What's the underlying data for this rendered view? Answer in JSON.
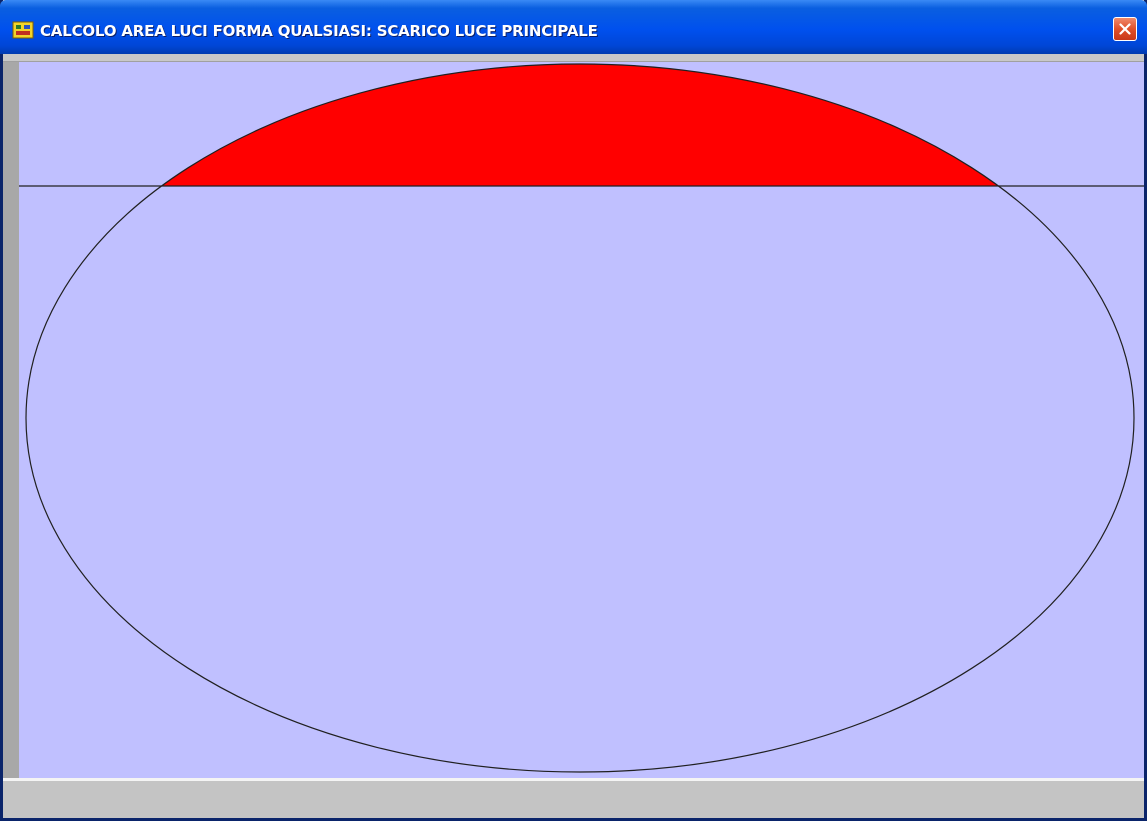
{
  "window": {
    "title": "CALCOLO AREA LUCI FORMA QUALSIASI: SCARICO LUCE PRINCIPALE",
    "icons": {
      "app": "app-icon",
      "close": "close-icon"
    }
  },
  "colors": {
    "title_bar": "#0050ee",
    "canvas_background": "#c0c0ff",
    "filled_segment": "#ff0000",
    "outline": "#000000",
    "close_button": "#e0502a"
  }
}
